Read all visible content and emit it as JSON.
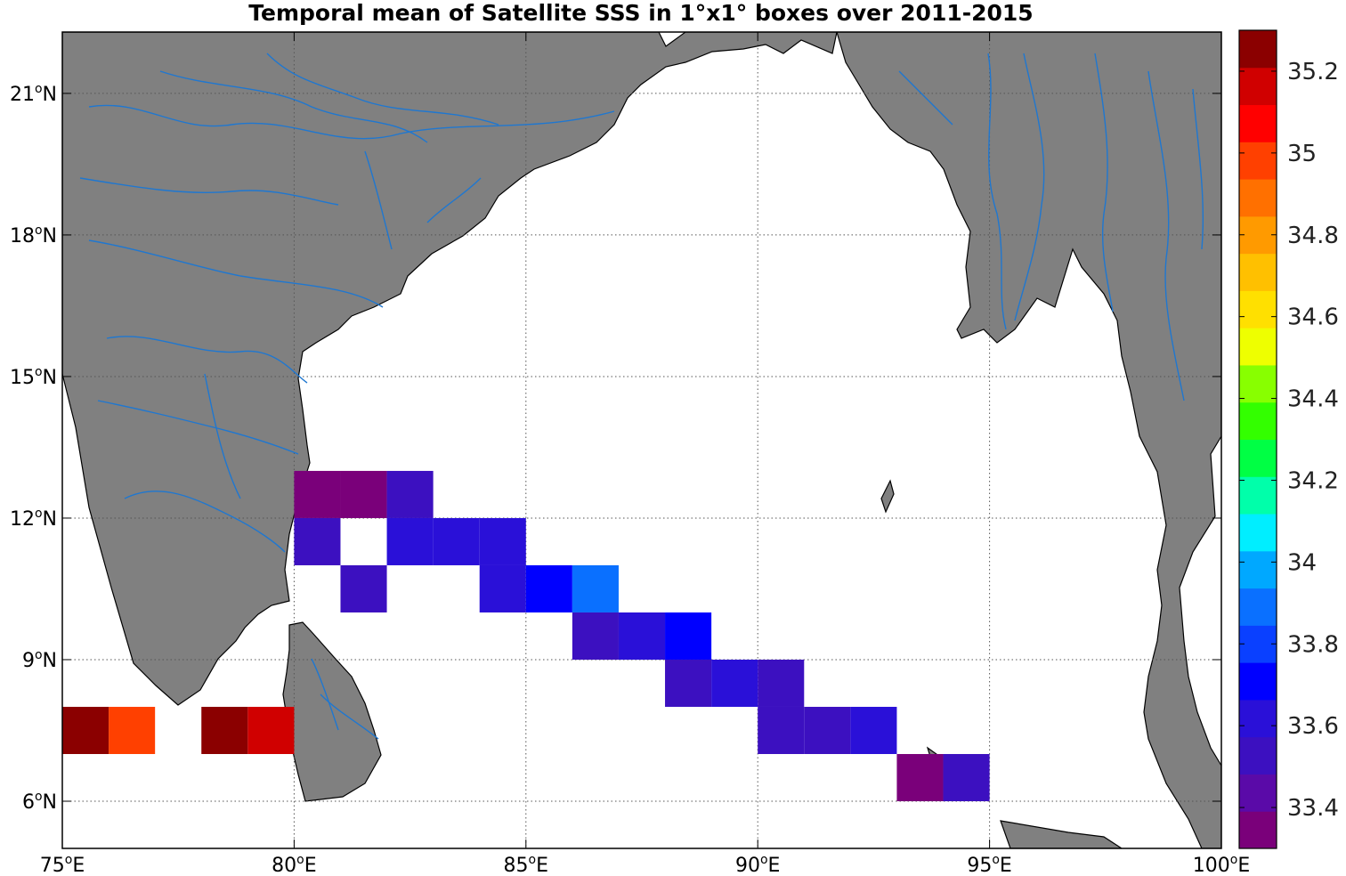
{
  "title": "Temporal mean of Satellite SSS in 1°x1° boxes over 2011-2015",
  "colors": {
    "land": "#808080",
    "coast": "#000000",
    "rivers": "#1f77d0",
    "grid": "#555555",
    "background": "#ffffff"
  },
  "map_extent": {
    "lon": [
      75,
      100
    ],
    "lat": [
      5,
      22.3
    ]
  },
  "x_ticks": [
    {
      "value": 75,
      "label": "75",
      "suffix": "E"
    },
    {
      "value": 80,
      "label": "80",
      "suffix": "E"
    },
    {
      "value": 85,
      "label": "85",
      "suffix": "E"
    },
    {
      "value": 90,
      "label": "90",
      "suffix": "E"
    },
    {
      "value": 95,
      "label": "95",
      "suffix": "E"
    },
    {
      "value": 100,
      "label": "100",
      "suffix": "E"
    }
  ],
  "y_ticks": [
    {
      "value": 6,
      "label": "6",
      "suffix": "N"
    },
    {
      "value": 9,
      "label": "9",
      "suffix": "N"
    },
    {
      "value": 12,
      "label": "12",
      "suffix": "N"
    },
    {
      "value": 15,
      "label": "15",
      "suffix": "N"
    },
    {
      "value": 18,
      "label": "18",
      "suffix": "N"
    },
    {
      "value": 21,
      "label": "21",
      "suffix": "N"
    }
  ],
  "colorbar": {
    "range": [
      33.3,
      35.3
    ],
    "step": 0.1,
    "colors": [
      "#7a007a",
      "#5a0aa8",
      "#3c10c0",
      "#2a10d8",
      "#0000ff",
      "#0a40ff",
      "#0a70ff",
      "#00a8ff",
      "#00eeff",
      "#00ffaa",
      "#00ff44",
      "#33ff00",
      "#88ff00",
      "#eeff00",
      "#ffe000",
      "#ffc000",
      "#ff9a00",
      "#ff7000",
      "#ff4000",
      "#ff0000",
      "#d00000",
      "#8b0000"
    ],
    "tick_values": [
      33.4,
      33.6,
      33.8,
      34,
      34.2,
      34.4,
      34.6,
      34.8,
      35,
      35.2
    ],
    "tick_labels": [
      "33.4",
      "33.6",
      "33.8",
      "34",
      "34.2",
      "34.4",
      "34.6",
      "34.8",
      "35",
      "35.2"
    ]
  },
  "chart_data": {
    "type": "heatmap",
    "title": "Temporal mean of Satellite SSS in 1°x1° boxes over 2011-2015",
    "units": "degree boxes",
    "cells": [
      {
        "lon": 75,
        "lat": 7,
        "sss": 35.25
      },
      {
        "lon": 76,
        "lat": 7,
        "sss": 35.0
      },
      {
        "lon": 78,
        "lat": 7,
        "sss": 35.25
      },
      {
        "lon": 79,
        "lat": 7,
        "sss": 35.15
      },
      {
        "lon": 80,
        "lat": 12,
        "sss": 33.38
      },
      {
        "lon": 81,
        "lat": 12,
        "sss": 33.38
      },
      {
        "lon": 82,
        "lat": 12,
        "sss": 33.55
      },
      {
        "lon": 80,
        "lat": 11,
        "sss": 33.52
      },
      {
        "lon": 82,
        "lat": 11,
        "sss": 33.65
      },
      {
        "lon": 83,
        "lat": 11,
        "sss": 33.63
      },
      {
        "lon": 84,
        "lat": 11,
        "sss": 33.63
      },
      {
        "lon": 81,
        "lat": 10,
        "sss": 33.52
      },
      {
        "lon": 84,
        "lat": 10,
        "sss": 33.63
      },
      {
        "lon": 85,
        "lat": 10,
        "sss": 33.75
      },
      {
        "lon": 86,
        "lat": 10,
        "sss": 33.85
      },
      {
        "lon": 86,
        "lat": 9,
        "sss": 33.5
      },
      {
        "lon": 87,
        "lat": 9,
        "sss": 33.6
      },
      {
        "lon": 88,
        "lat": 9,
        "sss": 33.75
      },
      {
        "lon": 88,
        "lat": 8,
        "sss": 33.5
      },
      {
        "lon": 89,
        "lat": 8,
        "sss": 33.63
      },
      {
        "lon": 90,
        "lat": 8,
        "sss": 33.52
      },
      {
        "lon": 90,
        "lat": 7,
        "sss": 33.52
      },
      {
        "lon": 91,
        "lat": 7,
        "sss": 33.52
      },
      {
        "lon": 92,
        "lat": 7,
        "sss": 33.65
      },
      {
        "lon": 93,
        "lat": 6,
        "sss": 33.38
      },
      {
        "lon": 94,
        "lat": 6,
        "sss": 33.55
      }
    ]
  }
}
